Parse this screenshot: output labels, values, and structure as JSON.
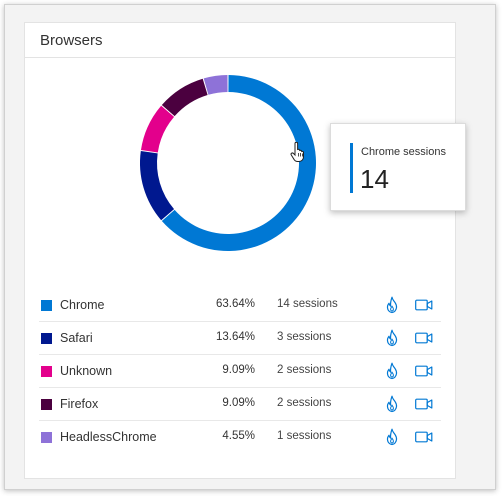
{
  "card": {
    "title": "Browsers"
  },
  "tooltip": {
    "label": "Chrome sessions",
    "value": "14",
    "accent_color": "#0078d4"
  },
  "browsers": [
    {
      "name": "Chrome",
      "percent": "63.64%",
      "sessions": "14 sessions",
      "count": 14,
      "color": "#0078d4",
      "heatmap_icon": "flame-icon",
      "recording_icon": "video-camera-icon"
    },
    {
      "name": "Safari",
      "percent": "13.64%",
      "sessions": "3 sessions",
      "count": 3,
      "color": "#00188f",
      "heatmap_icon": "flame-icon",
      "recording_icon": "video-camera-icon"
    },
    {
      "name": "Unknown",
      "percent": "9.09%",
      "sessions": "2 sessions",
      "count": 2,
      "color": "#e3008c",
      "heatmap_icon": "flame-icon",
      "recording_icon": "video-camera-icon"
    },
    {
      "name": "Firefox",
      "percent": "9.09%",
      "sessions": "2 sessions",
      "count": 2,
      "color": "#4b003f",
      "heatmap_icon": "flame-icon",
      "recording_icon": "video-camera-icon"
    },
    {
      "name": "HeadlessChrome",
      "percent": "4.55%",
      "sessions": "1 sessions",
      "count": 1,
      "color": "#8e72d8",
      "heatmap_icon": "flame-icon",
      "recording_icon": "video-camera-icon"
    }
  ],
  "chart_data": {
    "type": "pie",
    "categories": [
      "Chrome",
      "Safari",
      "Unknown",
      "Firefox",
      "HeadlessChrome"
    ],
    "values": [
      14,
      3,
      2,
      2,
      1
    ],
    "percent": [
      63.64,
      13.64,
      9.09,
      9.09,
      4.55
    ],
    "colors": [
      "#0078d4",
      "#00188f",
      "#e3008c",
      "#4b003f",
      "#8e72d8"
    ],
    "title": "Browsers",
    "legend": "bottom",
    "donut": true
  }
}
